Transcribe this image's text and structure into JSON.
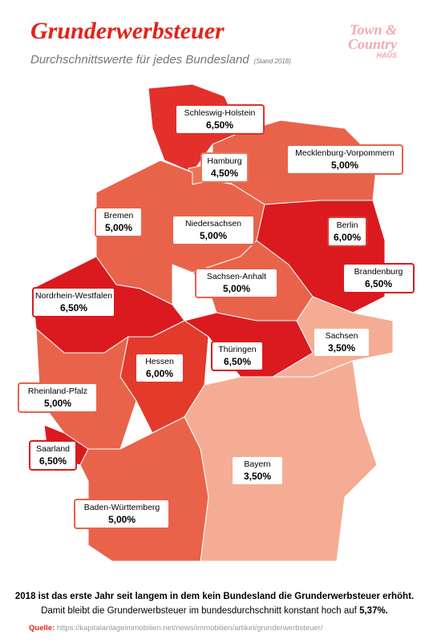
{
  "header": {
    "title": "Grunderwerbsteuer",
    "subtitle": "Durchschnittswerte für jedes Bundesland",
    "stand": "(Stand 2018)"
  },
  "logo": {
    "line1": "Town &",
    "line2": "Country",
    "line3": "HAUS"
  },
  "regions": [
    {
      "name": "Schleswig-Holstein",
      "rate": "6,50%",
      "color": "#e3302a"
    },
    {
      "name": "Hamburg",
      "rate": "4,50%",
      "color": "#ec7456"
    },
    {
      "name": "Mecklenburg-Vorpommern",
      "rate": "5,00%",
      "color": "#e9634a"
    },
    {
      "name": "Bremen",
      "rate": "5,00%",
      "color": "#e9634a"
    },
    {
      "name": "Niedersachsen",
      "rate": "5,00%",
      "color": "#e9634a"
    },
    {
      "name": "Berlin",
      "rate": "6,00%",
      "color": "#e33a2c"
    },
    {
      "name": "Brandenburg",
      "rate": "6,50%",
      "color": "#db1a1f"
    },
    {
      "name": "Sachsen-Anhalt",
      "rate": "5,00%",
      "color": "#e9634a"
    },
    {
      "name": "Nordrhein-Westfalen",
      "rate": "6,50%",
      "color": "#db1a1f"
    },
    {
      "name": "Sachsen",
      "rate": "3,50%",
      "color": "#f4ad94"
    },
    {
      "name": "Thüringen",
      "rate": "6,50%",
      "color": "#db1a1f"
    },
    {
      "name": "Hessen",
      "rate": "6,00%",
      "color": "#e33a2c"
    },
    {
      "name": "Rheinland-Pfalz",
      "rate": "5,00%",
      "color": "#e9634a"
    },
    {
      "name": "Saarland",
      "rate": "6,50%",
      "color": "#db1a1f"
    },
    {
      "name": "Bayern",
      "rate": "3,50%",
      "color": "#f4ad94"
    },
    {
      "name": "Baden-Württemberg",
      "rate": "5,00%",
      "color": "#e9634a"
    }
  ],
  "footer": {
    "line1": "2018 ist das erste Jahr seit langem in dem kein Bundesland die Grunderwerbsteuer erhöht.",
    "line2": "Damit bleibt die Grunderwerbsteuer im bundesdurchschnitt konstant hoch auf ",
    "line2_bold": "5,37%.",
    "source_label": "Quelle:",
    "source_url": "https://kapitalanlageimmobilien.net/news/immobilien/artikel/grunderwerbsteuer/"
  }
}
